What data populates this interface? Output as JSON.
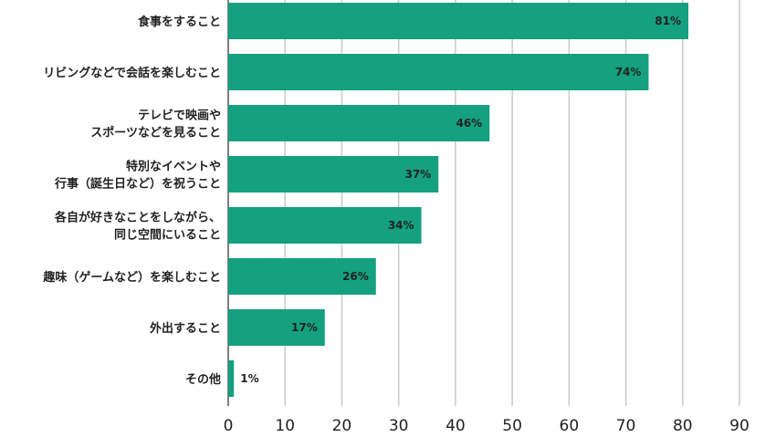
{
  "chart_data": {
    "type": "bar",
    "orientation": "horizontal",
    "categories": [
      [
        "食事をすること"
      ],
      [
        "リビングなどで会話を楽しむこと"
      ],
      [
        "テレビで映画や",
        "スポーツなどを見ること"
      ],
      [
        "特別なイベントや",
        "行事（誕生日など）を祝うこと"
      ],
      [
        "各自が好きなことをしながら、",
        "同じ空間にいること"
      ],
      [
        "趣味（ゲームなど）を楽しむこと"
      ],
      [
        "外出すること"
      ],
      [
        "その他"
      ]
    ],
    "values": [
      81,
      74,
      46,
      37,
      34,
      26,
      17,
      1
    ],
    "value_labels": [
      "81%",
      "74%",
      "46%",
      "37%",
      "34%",
      "26%",
      "17%",
      "1%"
    ],
    "xlim": [
      0,
      90
    ],
    "x_ticks": [
      "0",
      "10",
      "20",
      "30",
      "40",
      "50",
      "60",
      "70",
      "80",
      "90"
    ],
    "grid": "vertical",
    "bar_color": "#15a07f",
    "grid_color": "#c8c8c8",
    "axis_color": "#555555",
    "title": "",
    "xlabel": "",
    "ylabel": ""
  }
}
